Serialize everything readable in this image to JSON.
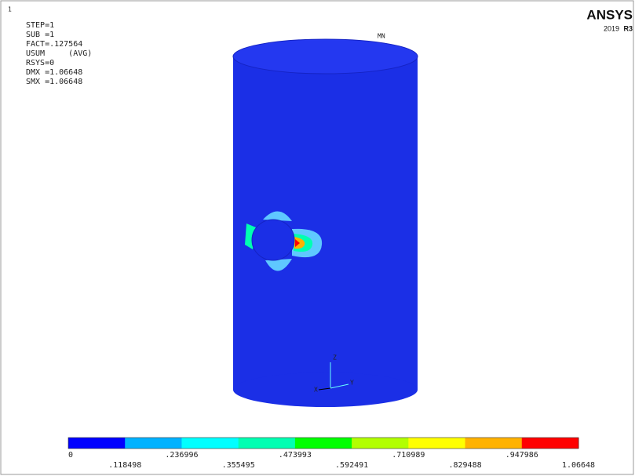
{
  "corner_mark": "1",
  "info": [
    "STEP=1",
    "SUB =1",
    "FACT=.127564",
    "USUM     (AVG)",
    "RSYS=0",
    "DMX =1.06648",
    "SMX =1.06648"
  ],
  "logo": {
    "title": "ANSYS",
    "version": "2019",
    "release": "R3"
  },
  "min_label": "MN",
  "triad": {
    "z": "Z",
    "y": "Y",
    "x": "X"
  },
  "legend": {
    "colors": [
      "#0000ff",
      "#00b2ff",
      "#00ffff",
      "#00ffb2",
      "#00ff00",
      "#b2ff00",
      "#ffff00",
      "#ffb200",
      "#ff0000"
    ],
    "labels": [
      "0",
      ".118498",
      ".236996",
      ".355495",
      ".473993",
      ".592491",
      ".710989",
      ".829488",
      ".947986",
      "1.06648"
    ]
  }
}
